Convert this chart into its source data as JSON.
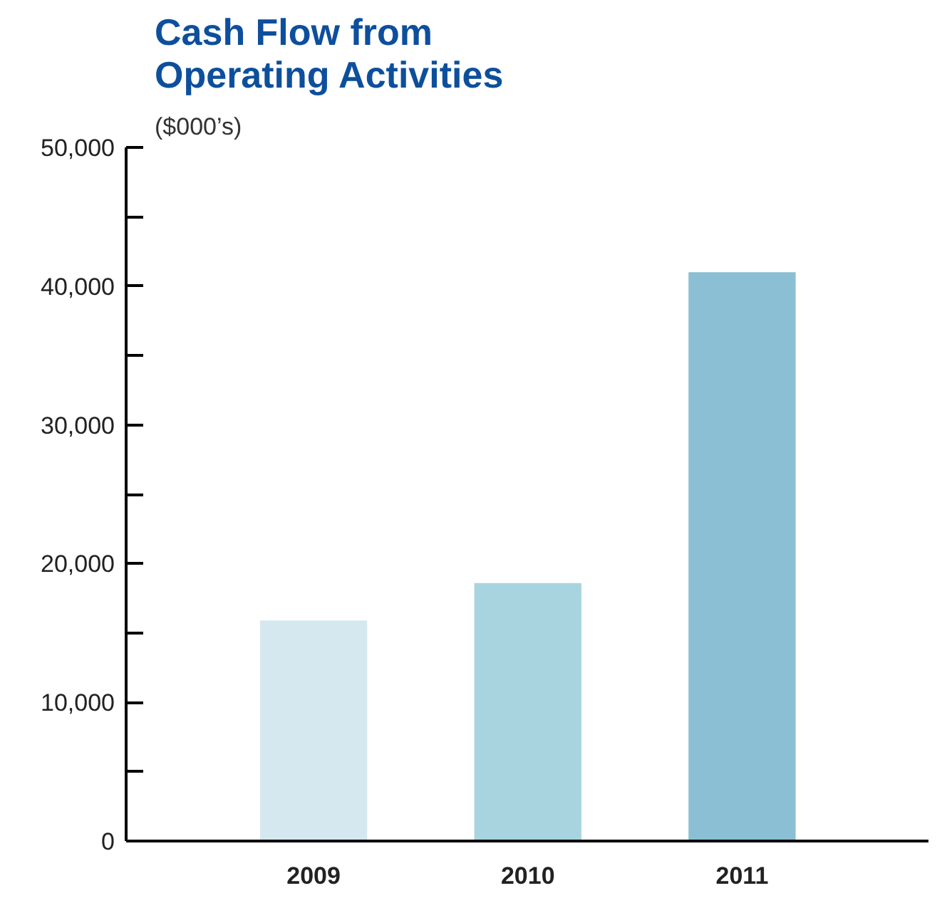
{
  "chart_data": {
    "type": "bar",
    "title": "Cash Flow from\nOperating Activities",
    "subtitle": "($000’s)",
    "categories": [
      "2009",
      "2010",
      "2011"
    ],
    "values": [
      15900,
      18600,
      41000
    ],
    "colors": [
      "#d5e8ef",
      "#a8d4df",
      "#8bbfd3"
    ],
    "ylim": [
      0,
      50000
    ],
    "yticks": [
      0,
      {
        "value": 5000,
        "label": null
      },
      {
        "value": 10000,
        "label": "10,000"
      },
      {
        "value": 15000,
        "label": null
      },
      {
        "value": 20000,
        "label": "20,000"
      },
      {
        "value": 25000,
        "label": null
      },
      {
        "value": 30000,
        "label": "30,000"
      },
      {
        "value": 35000,
        "label": null
      },
      {
        "value": 40000,
        "label": "40,000"
      },
      {
        "value": 45000,
        "label": null
      },
      {
        "value": 50000,
        "label": "50,000"
      }
    ],
    "grid": false
  }
}
